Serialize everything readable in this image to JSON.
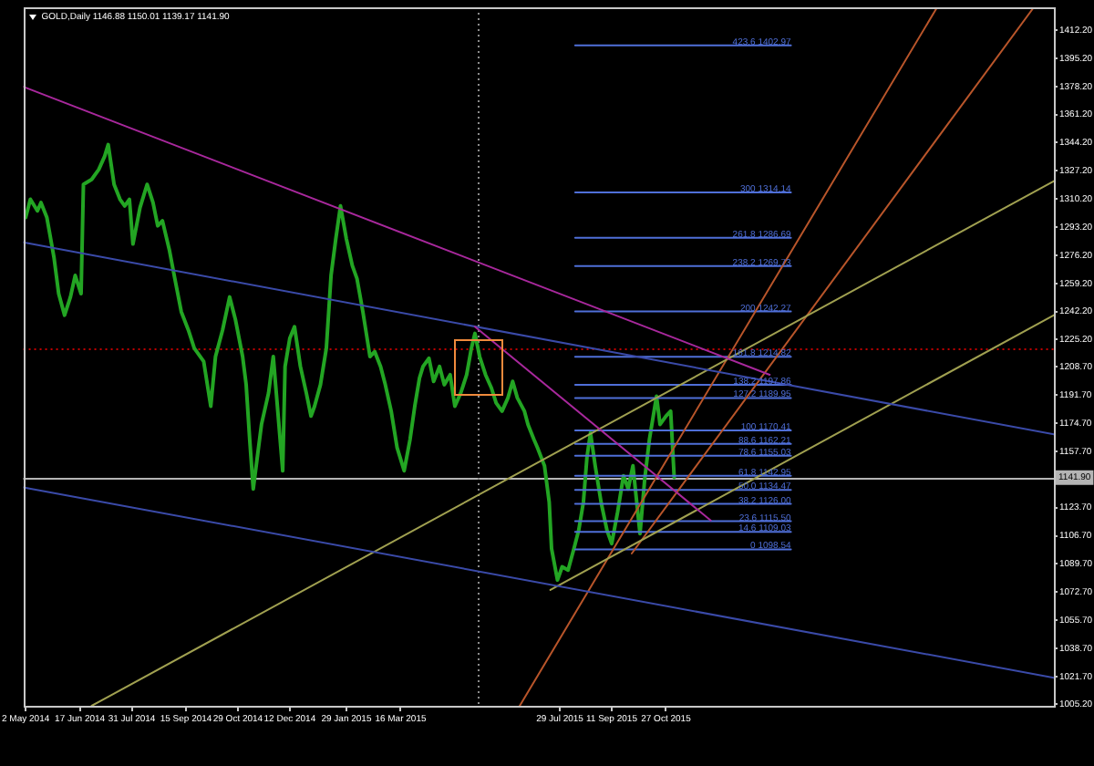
{
  "chart_data": {
    "type": "line",
    "title": "GOLD,Daily 1146.88 1150.01 1139.17 1141.90",
    "xlim": [
      "2014-04-30",
      "2016-09-20"
    ],
    "xticks": [
      {
        "value": "2014-05-02",
        "label": "2 May 2014"
      },
      {
        "value": "2014-06-17",
        "label": "17 Jun 2014"
      },
      {
        "value": "2014-07-31",
        "label": "31 Jul 2014"
      },
      {
        "value": "2014-09-15",
        "label": "15 Sep 2014"
      },
      {
        "value": "2014-10-29",
        "label": "29 Oct 2014"
      },
      {
        "value": "2014-12-12",
        "label": "12 Dec 2014"
      },
      {
        "value": "2015-01-29",
        "label": "29 Jan 2015"
      },
      {
        "value": "2015-03-16",
        "label": "16 Mar 2015"
      },
      {
        "value": "2015-07-29",
        "label": "29 Jul 2015"
      },
      {
        "value": "2015-09-11",
        "label": "11 Sep 2015"
      },
      {
        "value": "2015-10-27",
        "label": "27 Oct 2015"
      }
    ],
    "ylim": [
      1004,
      1426
    ],
    "yticks": [
      {
        "value": 1412.2,
        "label": "1412.20"
      },
      {
        "value": 1395.2,
        "label": "1395.20"
      },
      {
        "value": 1378.2,
        "label": "1378.20"
      },
      {
        "value": 1361.2,
        "label": "1361.20"
      },
      {
        "value": 1344.2,
        "label": "1344.20"
      },
      {
        "value": 1327.2,
        "label": "1327.20"
      },
      {
        "value": 1310.2,
        "label": "1310.20"
      },
      {
        "value": 1293.2,
        "label": "1293.20"
      },
      {
        "value": 1276.2,
        "label": "1276.20"
      },
      {
        "value": 1259.2,
        "label": "1259.20"
      },
      {
        "value": 1242.2,
        "label": "1242.20"
      },
      {
        "value": 1225.2,
        "label": "1225.20"
      },
      {
        "value": 1208.7,
        "label": "1208.70"
      },
      {
        "value": 1191.7,
        "label": "1191.70"
      },
      {
        "value": 1174.7,
        "label": "1174.70"
      },
      {
        "value": 1157.7,
        "label": "1157.70"
      },
      {
        "value": 1123.7,
        "label": "1123.70"
      },
      {
        "value": 1106.7,
        "label": "1106.70"
      },
      {
        "value": 1089.7,
        "label": "1089.70"
      },
      {
        "value": 1072.7,
        "label": "1072.70"
      },
      {
        "value": 1055.7,
        "label": "1055.70"
      },
      {
        "value": 1038.7,
        "label": "1038.70"
      },
      {
        "value": 1021.7,
        "label": "1021.70"
      },
      {
        "value": 1005.2,
        "label": "1005.20"
      }
    ],
    "ref_lines": [
      {
        "axis": "y",
        "value": 1141.9,
        "label": "1141.90",
        "color": "#b4b4b4",
        "line_style": "solid"
      },
      {
        "axis": "y",
        "value": 1220,
        "color": "#c00000",
        "line_style": "dotted"
      },
      {
        "axis": "x",
        "value": "2015-05-21",
        "color": "#8c8c8c",
        "line_style": "dotted"
      }
    ],
    "series": [
      {
        "color": "#23a523",
        "x": [
          "2014-05-02",
          "2014-05-06",
          "2014-05-12",
          "2014-05-15",
          "2014-05-20",
          "2014-05-26",
          "2014-05-30",
          "2014-06-04",
          "2014-06-09",
          "2014-06-13",
          "2014-06-18",
          "2014-06-20",
          "2014-06-27",
          "2014-07-03",
          "2014-07-08",
          "2014-07-11",
          "2014-07-16",
          "2014-07-21",
          "2014-07-25",
          "2014-07-29",
          "2014-08-01",
          "2014-08-07",
          "2014-08-13",
          "2014-08-18",
          "2014-08-22",
          "2014-08-26",
          "2014-09-01",
          "2014-09-05",
          "2014-09-11",
          "2014-09-17",
          "2014-09-22",
          "2014-09-30",
          "2014-10-06",
          "2014-10-10",
          "2014-10-16",
          "2014-10-22",
          "2014-10-27",
          "2014-11-02",
          "2014-11-05",
          "2014-11-08",
          "2014-11-11",
          "2014-11-18",
          "2014-11-24",
          "2014-11-28",
          "2014-12-06",
          "2014-12-08",
          "2014-12-12",
          "2014-12-16",
          "2014-12-21",
          "2014-12-26",
          "2014-12-30",
          "2015-01-02",
          "2015-01-07",
          "2015-01-12",
          "2015-01-16",
          "2015-01-20",
          "2015-01-24",
          "2015-01-29",
          "2015-02-03",
          "2015-02-07",
          "2015-02-12",
          "2015-02-18",
          "2015-02-22",
          "2015-02-27",
          "2015-03-03",
          "2015-03-08",
          "2015-03-13",
          "2015-03-19",
          "2015-03-24",
          "2015-03-28",
          "2015-04-01",
          "2015-04-04",
          "2015-04-09",
          "2015-04-13",
          "2015-04-18",
          "2015-04-22",
          "2015-04-27",
          "2015-05-01",
          "2015-05-06",
          "2015-05-11",
          "2015-05-15",
          "2015-05-18",
          "2015-05-22",
          "2015-05-27",
          "2015-06-01",
          "2015-06-05",
          "2015-06-10",
          "2015-06-15",
          "2015-06-19",
          "2015-06-23",
          "2015-06-29",
          "2015-07-02",
          "2015-07-07",
          "2015-07-10",
          "2015-07-16",
          "2015-07-20",
          "2015-07-22",
          "2015-07-27",
          "2015-07-31",
          "2015-08-05",
          "2015-08-10",
          "2015-08-14",
          "2015-08-18",
          "2015-08-21",
          "2015-08-24",
          "2015-08-28",
          "2015-09-02",
          "2015-09-07",
          "2015-09-11",
          "2015-09-16",
          "2015-09-21",
          "2015-09-25",
          "2015-09-29",
          "2015-10-05",
          "2015-10-09",
          "2015-10-13",
          "2015-10-19",
          "2015-10-22",
          "2015-10-27",
          "2015-10-31",
          "2015-11-03"
        ],
        "values": [
          1299,
          1310,
          1303,
          1308,
          1299,
          1275,
          1253,
          1240,
          1251,
          1264,
          1253,
          1319,
          1322,
          1328,
          1336,
          1343,
          1319,
          1310,
          1306,
          1310,
          1283,
          1305,
          1319,
          1308,
          1294,
          1297,
          1279,
          1264,
          1242,
          1231,
          1220,
          1212,
          1185,
          1215,
          1231,
          1251,
          1237,
          1215,
          1198,
          1165,
          1135,
          1174,
          1193,
          1215,
          1146,
          1209,
          1226,
          1233,
          1209,
          1193,
          1179,
          1185,
          1198,
          1220,
          1264,
          1286,
          1306,
          1286,
          1270,
          1262,
          1242,
          1215,
          1218,
          1209,
          1198,
          1182,
          1160,
          1146,
          1165,
          1185,
          1202,
          1209,
          1214,
          1200,
          1209,
          1198,
          1204,
          1185,
          1193,
          1204,
          1220,
          1229,
          1215,
          1204,
          1196,
          1187,
          1182,
          1190,
          1200,
          1190,
          1182,
          1174,
          1165,
          1160,
          1149,
          1127,
          1099,
          1080,
          1088,
          1086,
          1099,
          1110,
          1127,
          1154,
          1169,
          1149,
          1127,
          1110,
          1102,
          1121,
          1143,
          1135,
          1149,
          1108,
          1141,
          1165,
          1191,
          1174,
          1179,
          1182,
          1142
        ]
      },
      {
        "color": "#a8289c",
        "x": [
          "2014-04-30",
          "2016-01-23"
        ],
        "values": [
          1378,
          1204
        ]
      },
      {
        "color": "#a8289c",
        "x": [
          "2015-05-18",
          "2015-12-04"
        ],
        "values": [
          1233,
          1116
        ]
      },
      {
        "color": "#3a4aa8",
        "x": [
          "2014-04-30",
          "2016-09-20"
        ],
        "values": [
          1284,
          1168
        ]
      },
      {
        "color": "#3a4aa8",
        "x": [
          "2014-04-30",
          "2016-09-20"
        ],
        "values": [
          1136,
          1021
        ]
      },
      {
        "color": "#a0a050",
        "x": [
          "2014-06-27",
          "2016-09-20"
        ],
        "values": [
          1004,
          1321
        ]
      },
      {
        "color": "#a0a050",
        "x": [
          "2015-07-21",
          "2016-09-20"
        ],
        "values": [
          1074,
          1240
        ]
      },
      {
        "color": "#b8552a",
        "x": [
          "2015-06-25",
          "2016-06-13"
        ],
        "values": [
          1004,
          1426
        ]
      },
      {
        "color": "#b8552a",
        "x": [
          "2015-09-28",
          "2016-09-03"
        ],
        "values": [
          1096,
          1426
        ]
      },
      {
        "name": "423.6 1402.97",
        "color": "#4f6fd8",
        "x": [
          "2015-08-11",
          "2016-02-10"
        ],
        "values": [
          1402.97,
          1402.97
        ]
      },
      {
        "name": "300 1314.14",
        "color": "#4f6fd8",
        "x": [
          "2015-08-11",
          "2016-02-10"
        ],
        "values": [
          1314.14,
          1314.14
        ]
      },
      {
        "name": "261.8 1286.69",
        "color": "#4f6fd8",
        "x": [
          "2015-08-11",
          "2016-02-10"
        ],
        "values": [
          1286.69,
          1286.69
        ]
      },
      {
        "name": "238.2 1269.73",
        "color": "#4f6fd8",
        "x": [
          "2015-08-11",
          "2016-02-10"
        ],
        "values": [
          1269.73,
          1269.73
        ]
      },
      {
        "name": "200 1242.27",
        "color": "#4f6fd8",
        "x": [
          "2015-08-11",
          "2016-02-10"
        ],
        "values": [
          1242.27,
          1242.27
        ]
      },
      {
        "name": "161.8 1214.82",
        "color": "#4f6fd8",
        "x": [
          "2015-08-11",
          "2016-02-10"
        ],
        "values": [
          1214.82,
          1214.82
        ]
      },
      {
        "name": "138.2 1197.86",
        "color": "#4f6fd8",
        "x": [
          "2015-08-11",
          "2016-02-10"
        ],
        "values": [
          1197.86,
          1197.86
        ]
      },
      {
        "name": "127.2 1189.95",
        "color": "#4f6fd8",
        "x": [
          "2015-08-11",
          "2016-02-10"
        ],
        "values": [
          1189.95,
          1189.95
        ]
      },
      {
        "name": "100 1170.41",
        "color": "#4f6fd8",
        "x": [
          "2015-08-11",
          "2016-02-10"
        ],
        "values": [
          1170.41,
          1170.41
        ]
      },
      {
        "name": "88.6 1162.21",
        "color": "#4f6fd8",
        "x": [
          "2015-08-11",
          "2016-02-10"
        ],
        "values": [
          1162.21,
          1162.21
        ]
      },
      {
        "name": "78.6 1155.03",
        "color": "#4f6fd8",
        "x": [
          "2015-08-11",
          "2016-02-10"
        ],
        "values": [
          1155.03,
          1155.03
        ]
      },
      {
        "name": "61.8 1142.95",
        "color": "#4f6fd8",
        "x": [
          "2015-08-11",
          "2016-02-10"
        ],
        "values": [
          1142.95,
          1142.95
        ]
      },
      {
        "name": "50.0 1134.47",
        "color": "#4f6fd8",
        "x": [
          "2015-08-11",
          "2016-02-10"
        ],
        "values": [
          1134.47,
          1134.47
        ]
      },
      {
        "name": "38.2 1126.00",
        "color": "#4f6fd8",
        "x": [
          "2015-08-11",
          "2016-02-10"
        ],
        "values": [
          1126.0,
          1126.0
        ]
      },
      {
        "name": "23.6 1115.50",
        "color": "#4f6fd8",
        "x": [
          "2015-08-11",
          "2016-02-10"
        ],
        "values": [
          1115.5,
          1115.5
        ]
      },
      {
        "name": "14.6 1109.03",
        "color": "#4f6fd8",
        "x": [
          "2015-08-11",
          "2016-02-10"
        ],
        "values": [
          1109.03,
          1109.03
        ]
      },
      {
        "name": "0 1098.54",
        "color": "#4f6fd8",
        "x": [
          "2015-08-11",
          "2016-02-10"
        ],
        "values": [
          1098.54,
          1098.54
        ]
      }
    ]
  }
}
